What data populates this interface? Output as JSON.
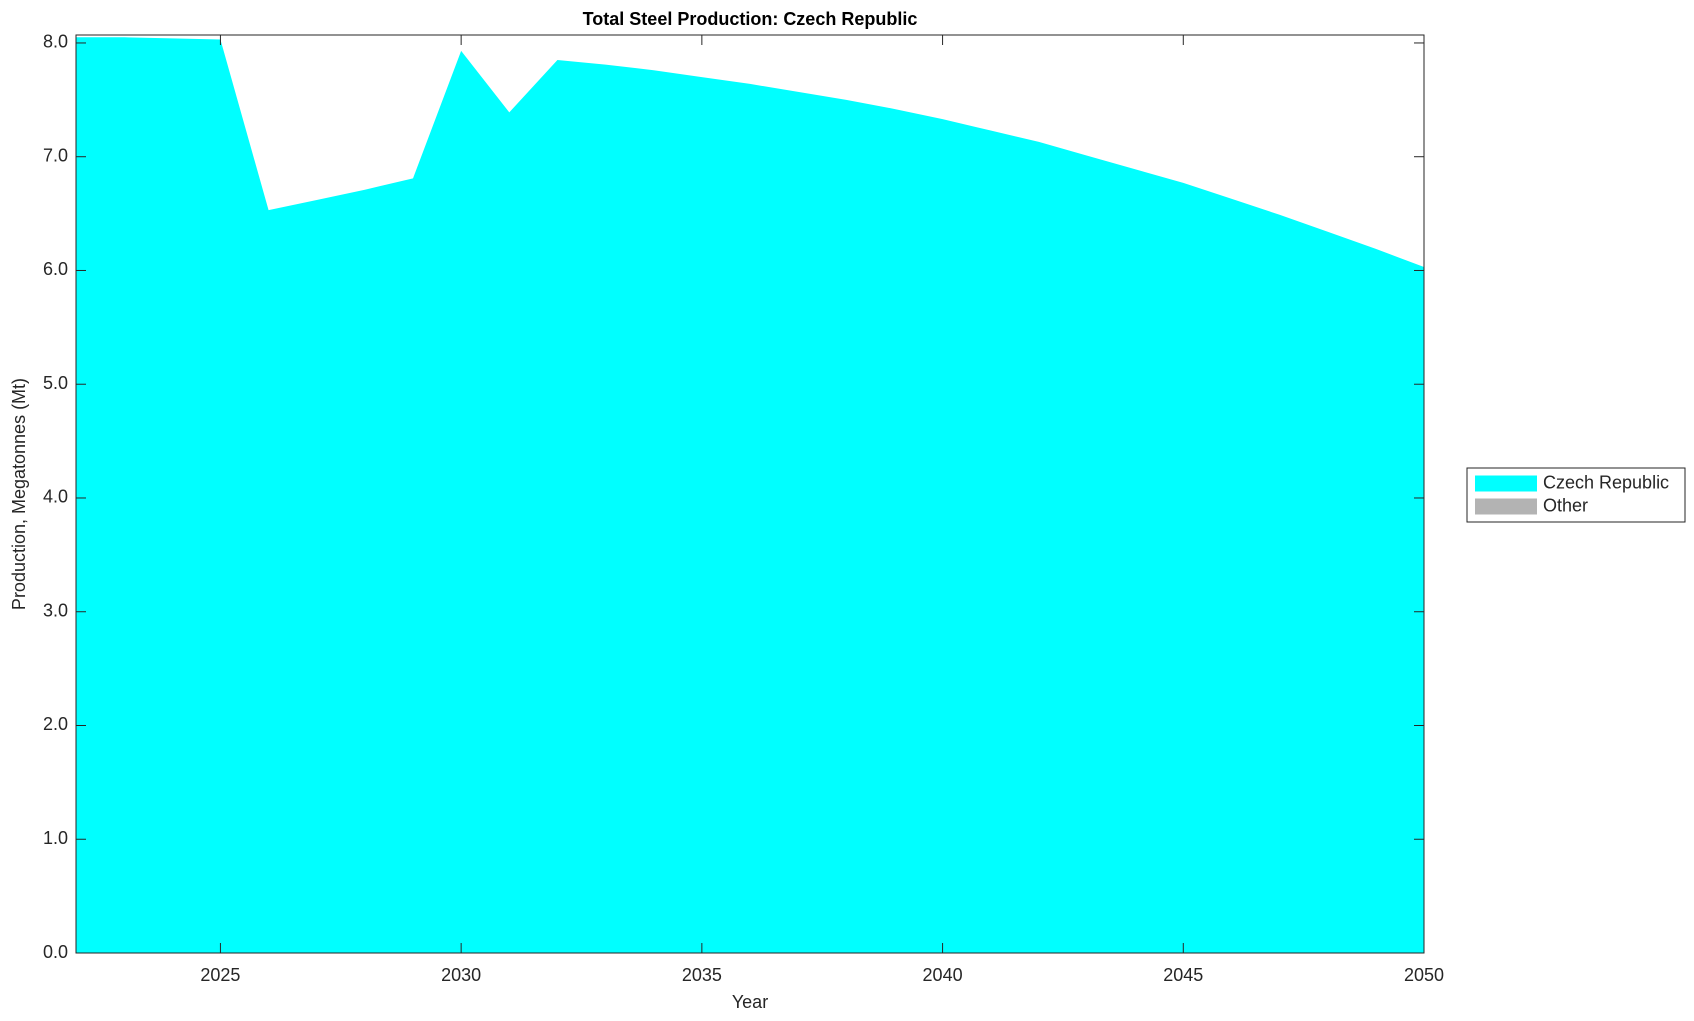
{
  "chart_data": {
    "type": "area",
    "title": "Total Steel Production: Czech Republic",
    "x_label": "Year",
    "y_label": "Production, Megatonnes (Mt)",
    "x": [
      2022,
      2023,
      2024,
      2025,
      2026,
      2027,
      2028,
      2029,
      2030,
      2031,
      2032,
      2033,
      2034,
      2035,
      2036,
      2037,
      2038,
      2039,
      2040,
      2041,
      2042,
      2043,
      2044,
      2045,
      2046,
      2047,
      2048,
      2049,
      2050
    ],
    "series": [
      {
        "name": "Czech Republic",
        "color": "#00ffff",
        "values": [
          8.05,
          8.05,
          8.04,
          8.03,
          6.53,
          6.62,
          6.71,
          6.81,
          7.93,
          7.39,
          7.85,
          7.81,
          7.76,
          7.7,
          7.64,
          7.57,
          7.5,
          7.42,
          7.33,
          7.23,
          7.13,
          7.01,
          6.89,
          6.77,
          6.63,
          6.49,
          6.34,
          6.19,
          6.03
        ]
      },
      {
        "name": "Other",
        "color": "#b3b3b3",
        "values": [
          0,
          0,
          0,
          0,
          0,
          0,
          0,
          0,
          0,
          0,
          0,
          0,
          0,
          0,
          0,
          0,
          0,
          0,
          0,
          0,
          0,
          0,
          0,
          0,
          0,
          0,
          0,
          0,
          0
        ]
      }
    ],
    "xlim": [
      2022,
      2050
    ],
    "xticks": [
      2025,
      2030,
      2035,
      2040,
      2045,
      2050
    ],
    "ylim": [
      0,
      8.07
    ],
    "yticks": [
      {
        "value": 0,
        "label": "0.0"
      },
      {
        "value": 1,
        "label": "1.0"
      },
      {
        "value": 2,
        "label": "2.0"
      },
      {
        "value": 3,
        "label": "3.0"
      },
      {
        "value": 4,
        "label": "4.0"
      },
      {
        "value": 5,
        "label": "5.0"
      },
      {
        "value": 6,
        "label": "6.0"
      },
      {
        "value": 7,
        "label": "7.0"
      },
      {
        "value": 8,
        "label": "8.0"
      }
    ],
    "grid": false,
    "legend": "right"
  }
}
